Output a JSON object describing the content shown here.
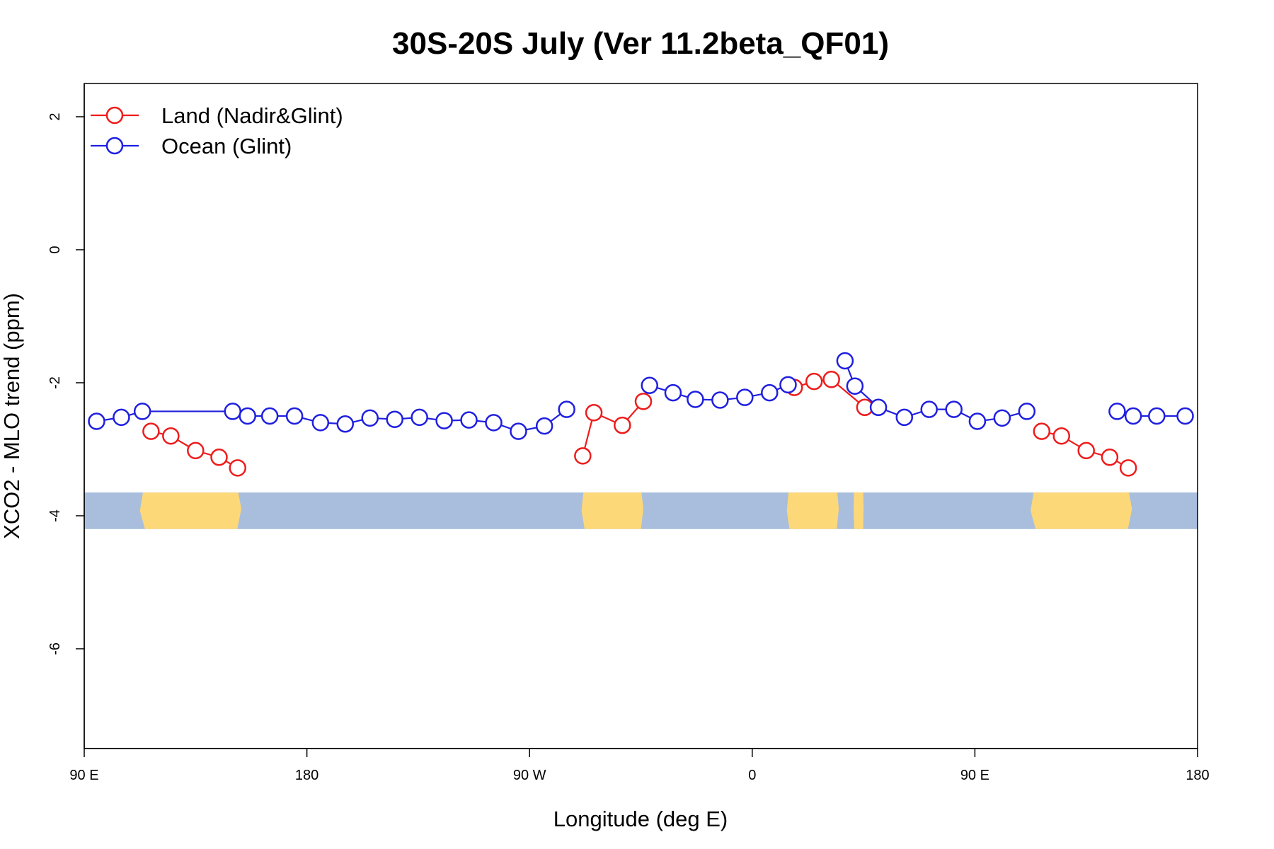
{
  "chart_data": {
    "type": "line",
    "title": "30S-20S July (Ver 11.2beta_QF01)",
    "xlabel": "Longitude (deg E)",
    "ylabel": "XCO2 - MLO trend (ppm)",
    "xlim": [
      90,
      540
    ],
    "ylim": [
      -7.5,
      2.5
    ],
    "x_ticks": [
      {
        "value": 90,
        "label": "90 E"
      },
      {
        "value": 180,
        "label": "180"
      },
      {
        "value": 270,
        "label": "90 W"
      },
      {
        "value": 360,
        "label": "0"
      },
      {
        "value": 450,
        "label": "90 E"
      },
      {
        "value": 540,
        "label": "180"
      }
    ],
    "y_ticks": [
      {
        "value": 2,
        "label": "2"
      },
      {
        "value": 0,
        "label": "0"
      },
      {
        "value": -2,
        "label": "-2"
      },
      {
        "value": -4,
        "label": "-4"
      },
      {
        "value": -6,
        "label": "-6"
      }
    ],
    "legend_position": "top-left",
    "grid": false,
    "land_strip": {
      "y_top": -3.65,
      "y_bottom": -4.2,
      "ocean_color": "#a8bedc",
      "land_color": "#fdd878"
    },
    "series": [
      {
        "name": "Land (Nadir&Glint)",
        "color": "#ee1c1c",
        "segments": [
          [
            [
              117,
              -2.73
            ],
            [
              125,
              -2.8
            ],
            [
              135,
              -3.02
            ],
            [
              144.5,
              -3.12
            ],
            [
              152,
              -3.28
            ]
          ],
          [
            [
              291.5,
              -3.1
            ],
            [
              296,
              -2.45
            ],
            [
              307.5,
              -2.64
            ],
            [
              316,
              -2.28
            ]
          ],
          [
            [
              377,
              -2.07
            ],
            [
              385,
              -1.98
            ],
            [
              392,
              -1.95
            ],
            [
              405.5,
              -2.37
            ]
          ],
          [
            [
              477,
              -2.73
            ],
            [
              485,
              -2.8
            ],
            [
              495,
              -3.02
            ],
            [
              504.5,
              -3.12
            ],
            [
              512,
              -3.28
            ]
          ]
        ]
      },
      {
        "name": "Ocean (Glint)",
        "color": "#1f1fe0",
        "segments": [
          [
            [
              95,
              -2.58
            ],
            [
              105,
              -2.52
            ],
            [
              113.5,
              -2.43
            ],
            [
              150,
              -2.43
            ],
            [
              156,
              -2.5
            ],
            [
              165,
              -2.5
            ],
            [
              175,
              -2.5
            ],
            [
              185.5,
              -2.6
            ],
            [
              195.5,
              -2.62
            ],
            [
              205.5,
              -2.53
            ],
            [
              215.5,
              -2.55
            ],
            [
              225.5,
              -2.52
            ],
            [
              235.5,
              -2.57
            ],
            [
              245.5,
              -2.56
            ],
            [
              255.5,
              -2.6
            ],
            [
              265.5,
              -2.73
            ],
            [
              276,
              -2.65
            ],
            [
              285,
              -2.4
            ]
          ],
          [
            [
              318.5,
              -2.04
            ],
            [
              328,
              -2.15
            ],
            [
              337,
              -2.25
            ],
            [
              347,
              -2.26
            ],
            [
              357,
              -2.22
            ],
            [
              367,
              -2.15
            ],
            [
              374.5,
              -2.03
            ]
          ],
          [
            [
              397.5,
              -1.67
            ],
            [
              401.5,
              -2.05
            ],
            [
              411,
              -2.37
            ],
            [
              421.5,
              -2.52
            ],
            [
              431.5,
              -2.4
            ],
            [
              441.5,
              -2.4
            ],
            [
              451,
              -2.58
            ],
            [
              461,
              -2.53
            ],
            [
              471,
              -2.43
            ]
          ],
          [
            [
              507.5,
              -2.43
            ],
            [
              514,
              -2.5
            ],
            [
              523.5,
              -2.5
            ],
            [
              535,
              -2.5
            ]
          ]
        ]
      }
    ]
  }
}
